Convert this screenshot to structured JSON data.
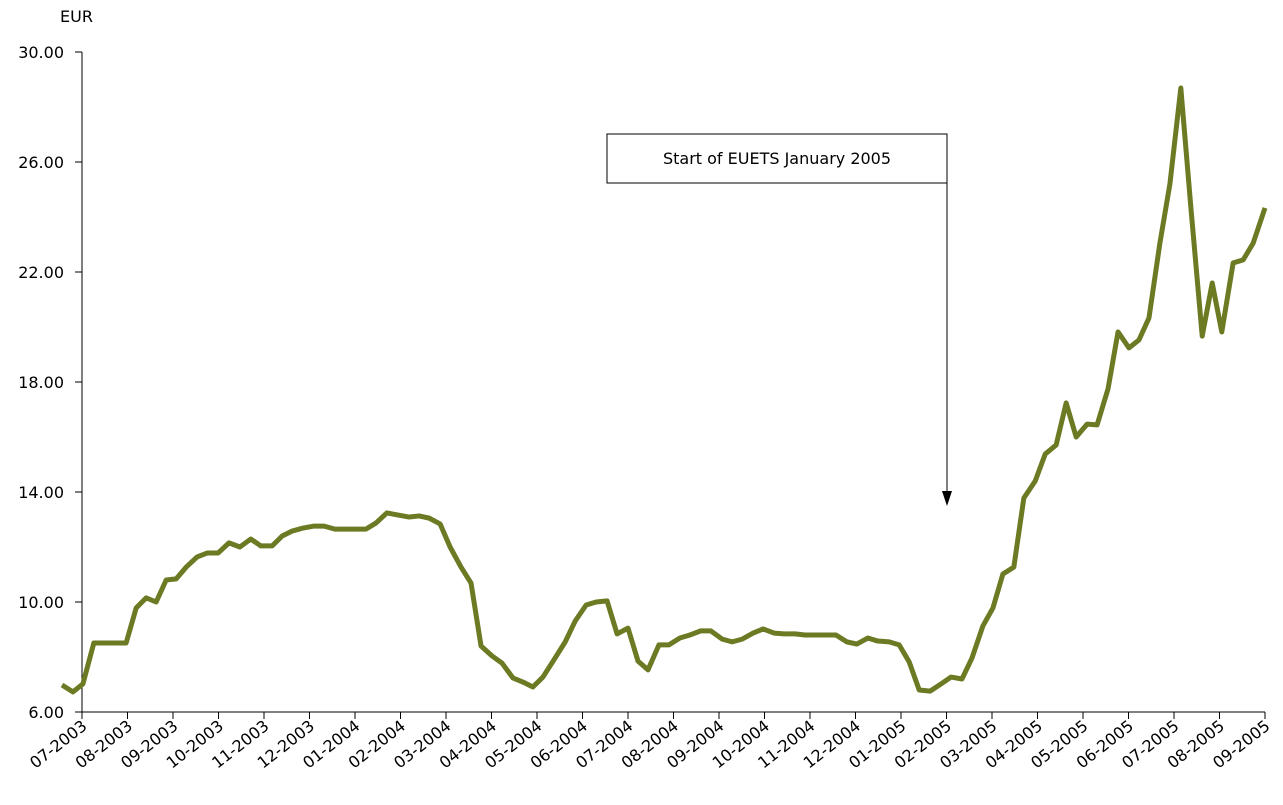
{
  "chart_data": {
    "type": "line",
    "y_label": "EUR",
    "annotation": "Start of EUETS January 2005",
    "xlim": [
      0,
      26
    ],
    "xticks": [
      {
        "value": 0,
        "label": "07-2003"
      },
      {
        "value": 1,
        "label": "08-2003"
      },
      {
        "value": 2,
        "label": "09-2003"
      },
      {
        "value": 3,
        "label": "10-2003"
      },
      {
        "value": 4,
        "label": "11-2003"
      },
      {
        "value": 5,
        "label": "12-2003"
      },
      {
        "value": 6,
        "label": "01-2004"
      },
      {
        "value": 7,
        "label": "02-2004"
      },
      {
        "value": 8,
        "label": "03-2004"
      },
      {
        "value": 9,
        "label": "04-2004"
      },
      {
        "value": 10,
        "label": "05-2004"
      },
      {
        "value": 11,
        "label": "06-2004"
      },
      {
        "value": 12,
        "label": "07-2004"
      },
      {
        "value": 13,
        "label": "08-2004"
      },
      {
        "value": 14,
        "label": "09-2004"
      },
      {
        "value": 15,
        "label": "10-2004"
      },
      {
        "value": 16,
        "label": "11-2004"
      },
      {
        "value": 17,
        "label": "12-2004"
      },
      {
        "value": 18,
        "label": "01-2005"
      },
      {
        "value": 19,
        "label": "02-2005"
      },
      {
        "value": 20,
        "label": "03-2005"
      },
      {
        "value": 21,
        "label": "04-2005"
      },
      {
        "value": 22,
        "label": "05-2005"
      },
      {
        "value": 23,
        "label": "06-2005"
      },
      {
        "value": 24,
        "label": "07-2005"
      },
      {
        "value": 25,
        "label": "08-2005"
      },
      {
        "value": 26,
        "label": "09-2005"
      }
    ],
    "ylim": [
      6,
      30
    ],
    "yticks": [
      {
        "value": 6,
        "label": "6.00"
      },
      {
        "value": 10,
        "label": "10.00"
      },
      {
        "value": 14,
        "label": "14.00"
      },
      {
        "value": 18,
        "label": "18.00"
      },
      {
        "value": 22,
        "label": "22.00"
      },
      {
        "value": 26,
        "label": "26.00"
      },
      {
        "value": 30,
        "label": "30.00"
      }
    ],
    "color": "#6b7a23",
    "x": [
      -0.44,
      -0.2,
      0.02,
      0.26,
      0.51,
      0.75,
      0.97,
      1.19,
      1.41,
      1.63,
      1.85,
      2.07,
      2.29,
      2.53,
      2.75,
      2.99,
      3.23,
      3.47,
      3.71,
      3.93,
      4.18,
      4.4,
      4.62,
      4.86,
      5.1,
      5.32,
      5.56,
      5.8,
      6.02,
      6.24,
      6.46,
      6.7,
      6.95,
      7.19,
      7.41,
      7.63,
      7.87,
      8.09,
      8.33,
      8.55,
      8.77,
      9.01,
      9.23,
      9.47,
      9.69,
      9.91,
      10.13,
      10.37,
      10.62,
      10.84,
      11.08,
      11.3,
      11.54,
      11.76,
      12.0,
      12.22,
      12.44,
      12.68,
      12.9,
      13.14,
      13.36,
      13.6,
      13.82,
      14.07,
      14.29,
      14.51,
      14.75,
      14.97,
      15.21,
      15.43,
      15.67,
      15.89,
      16.13,
      16.35,
      16.57,
      16.81,
      17.03,
      17.27,
      17.49,
      17.74,
      17.96,
      18.18,
      18.4,
      18.64,
      18.88,
      19.1,
      19.34,
      19.56,
      19.8,
      20.02,
      20.24,
      20.48,
      20.7,
      20.95,
      21.17,
      21.41,
      21.63,
      21.85,
      22.09,
      22.31,
      22.55,
      22.77,
      23.01,
      23.23,
      23.45,
      23.69,
      23.91,
      24.15,
      24.37,
      24.62,
      24.84,
      25.05,
      25.3,
      25.52,
      25.74,
      26.0
    ],
    "values": [
      6.98,
      6.73,
      7.02,
      8.51,
      8.51,
      8.51,
      8.51,
      9.78,
      10.15,
      10.0,
      10.8,
      10.84,
      11.27,
      11.64,
      11.78,
      11.78,
      12.15,
      12.0,
      12.29,
      12.04,
      12.04,
      12.4,
      12.58,
      12.69,
      12.76,
      12.76,
      12.65,
      12.65,
      12.65,
      12.65,
      12.87,
      13.24,
      13.16,
      13.09,
      13.13,
      13.05,
      12.84,
      12.0,
      11.27,
      10.69,
      8.4,
      8.04,
      7.78,
      7.24,
      7.09,
      6.91,
      7.27,
      7.89,
      8.55,
      9.31,
      9.89,
      10.0,
      10.04,
      8.84,
      9.05,
      7.85,
      7.53,
      8.44,
      8.44,
      8.69,
      8.8,
      8.95,
      8.95,
      8.65,
      8.55,
      8.65,
      8.87,
      9.02,
      8.87,
      8.84,
      8.84,
      8.8,
      8.8,
      8.8,
      8.8,
      8.55,
      8.47,
      8.69,
      8.58,
      8.55,
      8.44,
      7.82,
      6.8,
      6.76,
      7.02,
      7.27,
      7.2,
      7.96,
      9.13,
      9.78,
      11.02,
      11.27,
      13.78,
      14.4,
      15.38,
      15.71,
      17.24,
      16.0,
      16.47,
      16.44,
      17.75,
      19.82,
      19.24,
      19.53,
      20.33,
      23.05,
      25.2,
      28.69,
      24.36,
      19.67,
      21.6,
      19.82,
      22.33,
      22.44,
      23.05,
      24.33
    ]
  }
}
